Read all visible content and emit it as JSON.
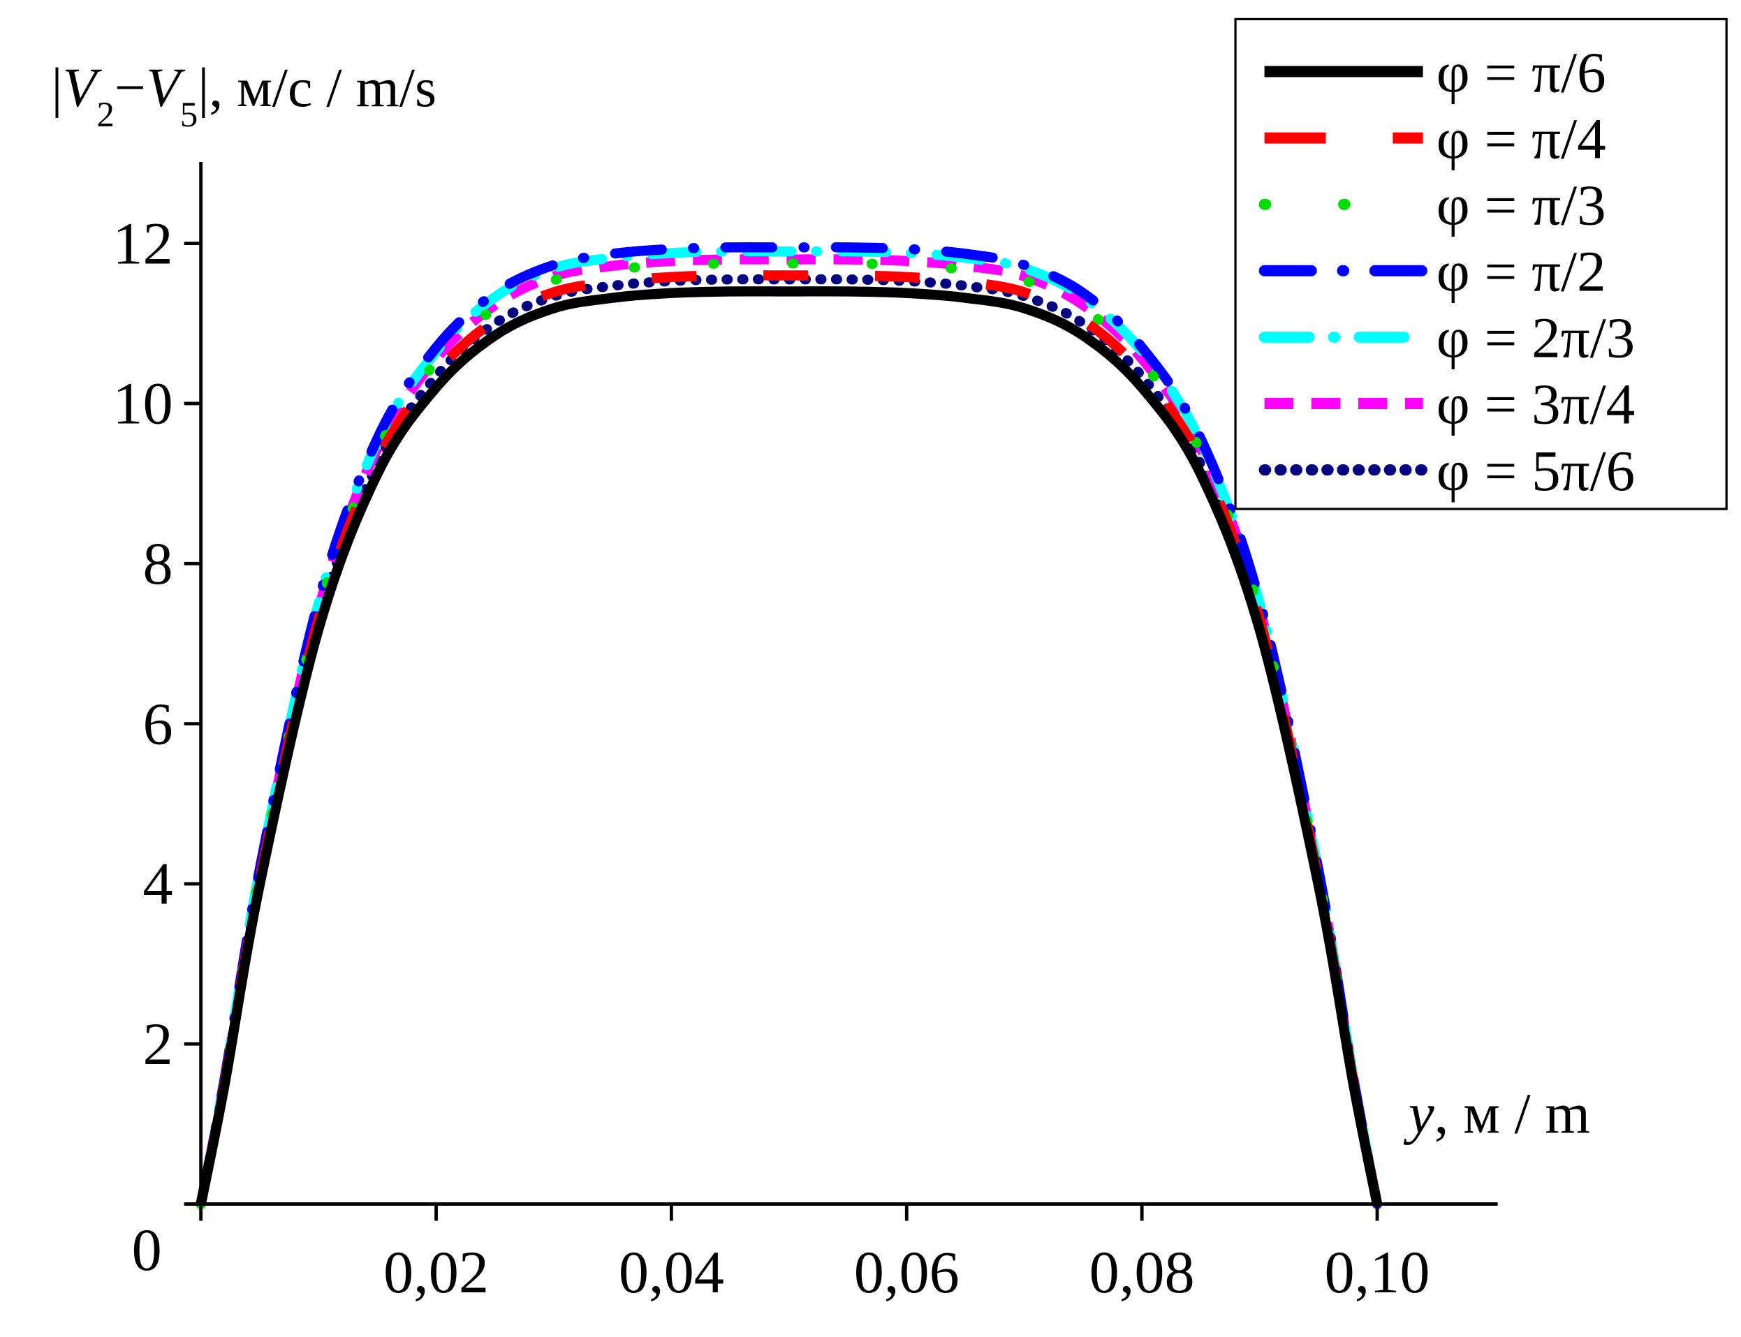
{
  "chart_data": {
    "type": "line",
    "title": "",
    "ylabel": {
      "prefix": "|",
      "v1": "V",
      "sub1": "2",
      "minus": "−",
      "v2": "V",
      "sub2": "5",
      "suffix": "|, м/с / m/s"
    },
    "xlabel": {
      "var": "y",
      "unit": ", м / m"
    },
    "xlim": [
      0,
      0.11
    ],
    "ylim": [
      0,
      13
    ],
    "origin_label": "0",
    "xticks": [
      0,
      0.02,
      0.04,
      0.06,
      0.08,
      0.1
    ],
    "xtick_labels": [
      "",
      "0,02",
      "0,04",
      "0,06",
      "0,08",
      "0,10"
    ],
    "yticks": [
      2,
      4,
      6,
      8,
      10,
      12
    ],
    "ytick_labels": [
      "2",
      "4",
      "6",
      "8",
      "10",
      "12"
    ],
    "grid": false,
    "legend_position": "top-right",
    "x": [
      0,
      0.002,
      0.005,
      0.01,
      0.015,
      0.02,
      0.025,
      0.03,
      0.035,
      0.04,
      0.045,
      0.05,
      0.055,
      0.06,
      0.065,
      0.07,
      0.075,
      0.08,
      0.085,
      0.09,
      0.095,
      0.098,
      0.1
    ],
    "series": [
      {
        "name": "φ = π/6",
        "color": "#000000",
        "dash": "solid",
        "values": [
          0,
          1.48,
          3.99,
          7.18,
          9.12,
          10.2,
          10.85,
          11.19,
          11.32,
          11.38,
          11.4,
          11.4,
          11.4,
          11.38,
          11.32,
          11.19,
          10.85,
          10.2,
          9.12,
          7.18,
          3.99,
          1.48,
          0
        ]
      },
      {
        "name": "φ = π/4",
        "color": "#ff0000",
        "dash": "long-dash",
        "values": [
          0,
          1.51,
          4.06,
          7.31,
          9.28,
          10.38,
          11.04,
          11.39,
          11.52,
          11.58,
          11.6,
          11.6,
          11.6,
          11.58,
          11.52,
          11.39,
          11.04,
          10.38,
          9.28,
          7.31,
          4.06,
          1.51,
          0
        ]
      },
      {
        "name": "φ = π/3",
        "color": "#00dd00",
        "dash": "sparse-dot",
        "values": [
          0,
          1.53,
          4.11,
          7.4,
          9.4,
          10.52,
          11.19,
          11.54,
          11.67,
          11.73,
          11.75,
          11.75,
          11.75,
          11.73,
          11.67,
          11.54,
          11.19,
          10.52,
          9.4,
          7.4,
          4.11,
          1.53,
          0
        ]
      },
      {
        "name": "φ = π/2",
        "color": "#0000ff",
        "dash": "dash-dot",
        "values": [
          0,
          1.55,
          4.18,
          7.53,
          9.56,
          10.7,
          11.38,
          11.73,
          11.87,
          11.93,
          11.95,
          11.95,
          11.95,
          11.93,
          11.87,
          11.73,
          11.38,
          10.7,
          9.56,
          7.53,
          4.18,
          1.55,
          0
        ]
      },
      {
        "name": "φ = 2π/3",
        "color": "#00ffff",
        "dash": "dash-dot-dot",
        "values": [
          0,
          1.55,
          4.17,
          7.5,
          9.52,
          10.65,
          11.33,
          11.69,
          11.82,
          11.88,
          11.9,
          11.9,
          11.9,
          11.88,
          11.82,
          11.69,
          11.33,
          10.65,
          9.52,
          7.5,
          4.17,
          1.55,
          0
        ]
      },
      {
        "name": "φ = 3π/4",
        "color": "#ff00ff",
        "dash": "dash",
        "values": [
          0,
          1.53,
          4.13,
          7.43,
          9.44,
          10.56,
          11.23,
          11.59,
          11.72,
          11.78,
          11.8,
          11.8,
          11.8,
          11.78,
          11.72,
          11.59,
          11.23,
          10.56,
          9.44,
          7.43,
          4.13,
          1.53,
          0
        ]
      },
      {
        "name": "φ = 5π/6",
        "color": "#000080",
        "dash": "dot",
        "values": [
          0,
          1.5,
          4.04,
          7.28,
          9.24,
          10.34,
          11.0,
          11.34,
          11.47,
          11.53,
          11.55,
          11.55,
          11.55,
          11.53,
          11.47,
          11.34,
          11.0,
          10.34,
          9.24,
          7.28,
          4.04,
          1.5,
          0
        ]
      }
    ]
  }
}
